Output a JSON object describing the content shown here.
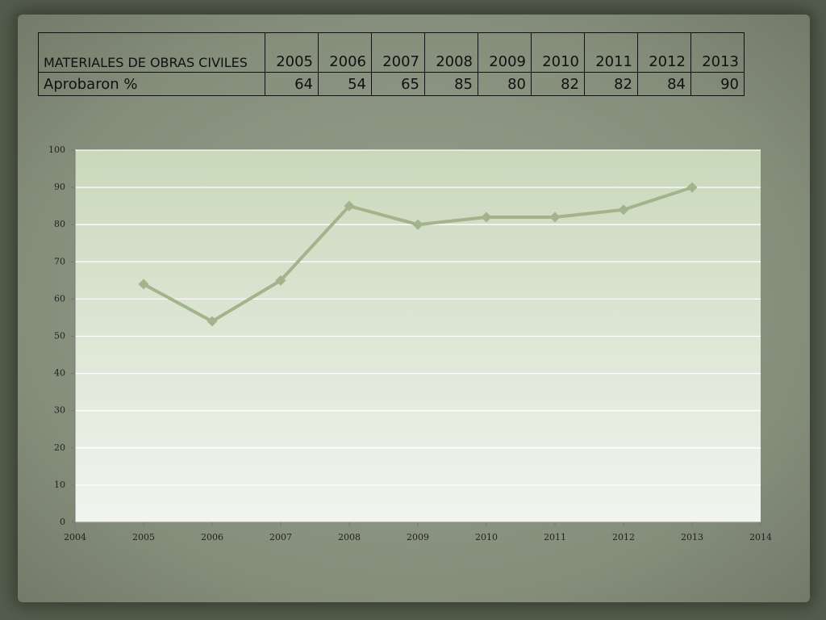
{
  "table": {
    "header_label": "MATERIALES DE OBRAS CIVILES",
    "row_label": "Aprobaron %"
  },
  "chart_data": {
    "type": "line",
    "x": [
      2005,
      2006,
      2007,
      2008,
      2009,
      2010,
      2011,
      2012,
      2013
    ],
    "values": [
      64,
      54,
      65,
      85,
      80,
      82,
      82,
      84,
      90
    ],
    "color": "#a3b38c",
    "xlim": [
      2004,
      2014
    ],
    "xticks": [
      2004,
      2005,
      2006,
      2007,
      2008,
      2009,
      2010,
      2011,
      2012,
      2013,
      2014
    ],
    "ylim": [
      0,
      100
    ],
    "yticks": [
      0,
      10,
      20,
      30,
      40,
      50,
      60,
      70,
      80,
      90,
      100
    ],
    "grid": true
  }
}
